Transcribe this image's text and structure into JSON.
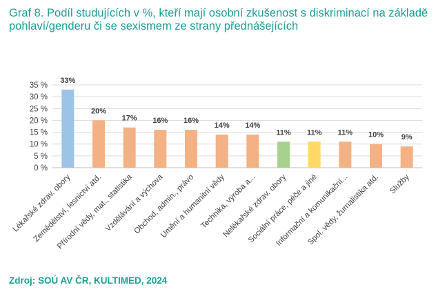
{
  "title": "Graf 8. Podíl studujících v %, kteří mají osobní zkušenost s diskriminací na základě pohlaví/genderu či se sexismem ze strany přednášejících",
  "source": "Zdroj: SOÚ AV ČR, KULTIMED, 2024",
  "chart_data": {
    "type": "bar",
    "title": "",
    "xlabel": "",
    "ylabel": "",
    "ylim": [
      0,
      35
    ],
    "yticks": [
      "0 %",
      "5 %",
      "10 %",
      "15 %",
      "20 %",
      "25 %",
      "30 %",
      "35 %"
    ],
    "grid": true,
    "categories": [
      "Lékařské zdrav. obory",
      "Zemědělství, lesnictví atd.",
      "Přírodní vědy, mat., statistika",
      "Vzdělávání a výchova",
      "Obchod, admin., právo",
      "Umění a humanitní vědy",
      "Technika, výroba a...",
      "Nelékařské zdrav. obory",
      "Sociální práce, péče a jiné",
      "Informační a komunikační...",
      "Spol. vědy, žurnalistika atd.",
      "Služby"
    ],
    "values": [
      33,
      20,
      17,
      16,
      16,
      14,
      14,
      11,
      11,
      11,
      10,
      9
    ],
    "data_labels": [
      "33%",
      "20%",
      "17%",
      "16%",
      "16%",
      "14%",
      "14%",
      "11%",
      "11%",
      "11%",
      "10%",
      "9%"
    ],
    "colors": [
      "#9dc3e6",
      "#f4b183",
      "#f4b183",
      "#f4b183",
      "#f4b183",
      "#f4b183",
      "#f4b183",
      "#a9d18e",
      "#ffd966",
      "#f4b183",
      "#f4b183",
      "#f4b183"
    ]
  }
}
